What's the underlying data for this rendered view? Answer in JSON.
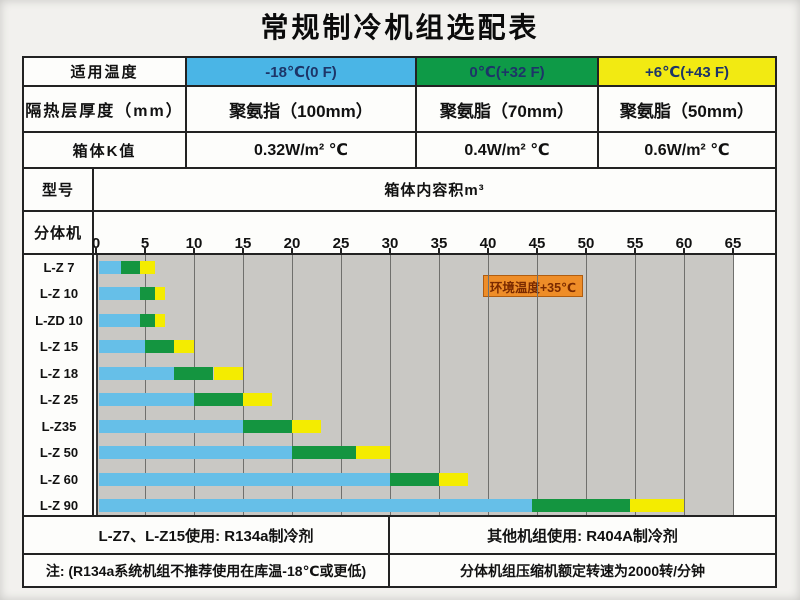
{
  "title": "常规制冷机组选配表",
  "colors": {
    "temp_blue": "#4ab5e6",
    "temp_green": "#0e9a47",
    "temp_yellow": "#f2ea12",
    "bar_blue": "#66bfe8",
    "bar_green": "#149540",
    "bar_yellow": "#f4ec00",
    "plot_bg": "#c9c8c4",
    "annotation_bg": "#ee8d28",
    "annotation_text": "#7a2a00",
    "border": "#222222"
  },
  "spec_table": {
    "rows": [
      {
        "label": "适用温度",
        "cells": [
          "-18℃(0 F)",
          "0℃(+32 F)",
          "+6℃(+43 F)"
        ]
      },
      {
        "label": "隔热层厚度（mm）",
        "cells": [
          "聚氨指（100mm）",
          "聚氨脂（70mm）",
          "聚氨脂（50mm）"
        ]
      },
      {
        "label": "箱体K值",
        "cells": [
          "0.32W/m² ℃",
          "0.4W/m² ℃",
          "0.6W/m² ℃"
        ]
      }
    ],
    "model_header": "型号",
    "volume_header": "箱体内容积m³",
    "unit_type_label": "分体机"
  },
  "chart_data": {
    "type": "bar",
    "orientation": "horizontal",
    "stacked": true,
    "xlabel": "箱体内容积m³",
    "xlim": [
      0,
      65
    ],
    "x_ticks": [
      0,
      5,
      10,
      15,
      20,
      25,
      30,
      35,
      40,
      45,
      50,
      55,
      60,
      65
    ],
    "grid": true,
    "categories": [
      "L-Z 7",
      "L-Z 10",
      "L-ZD 10",
      "L-Z 15",
      "L-Z 18",
      "L-Z 25",
      "L-Z35",
      "L-Z 50",
      "L-Z 60",
      "L-Z 90"
    ],
    "series": [
      {
        "name": "-18℃(0 F)",
        "color_key": "bar_blue",
        "cumulative_end": [
          2.5,
          4.5,
          4.5,
          5,
          8,
          10,
          15,
          20,
          30,
          44.5
        ]
      },
      {
        "name": "0℃(+32 F)",
        "color_key": "bar_green",
        "cumulative_end": [
          4.5,
          6,
          6,
          8,
          12,
          15,
          20,
          26.5,
          35,
          54.5
        ]
      },
      {
        "name": "+6℃(+43 F)",
        "color_key": "bar_yellow",
        "cumulative_end": [
          6,
          7,
          7,
          10,
          15,
          18,
          23,
          30,
          38,
          60
        ]
      }
    ],
    "annotation": {
      "text": "环境温度+35℃"
    }
  },
  "footer": {
    "refrigerant_left": "L-Z7、L-Z15使用: R134a制冷剂",
    "refrigerant_right": "其他机组使用: R404A制冷剂",
    "note_left": "注: (R134a系统机组不推荐使用在库温-18℃或更低)",
    "note_right": "分体机组压缩机额定转速为2000转/分钟"
  }
}
